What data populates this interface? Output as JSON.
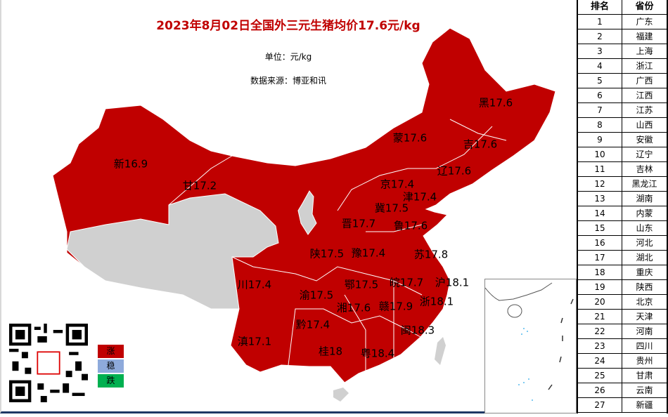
{
  "title": "2023年8月02日全国外三元生猪均价17.6元/kg",
  "unit": "单位：元/kg",
  "source": "数据来源：博亚和讯",
  "colors": {
    "up": "#c00000",
    "flat": "#8eaadb",
    "down": "#00b050",
    "no_data": "#d0d0d0"
  },
  "legend": {
    "up": "涨",
    "flat": "稳",
    "down": "跌"
  },
  "provinces": [
    {
      "abbr": "新",
      "price": "16.9",
      "label": "新16.9"
    },
    {
      "abbr": "甘",
      "price": "17.2",
      "label": "甘17.2"
    },
    {
      "abbr": "蒙",
      "price": "17.6",
      "label": "蒙17.6"
    },
    {
      "abbr": "黑",
      "price": "17.6",
      "label": "黑17.6"
    },
    {
      "abbr": "吉",
      "price": "17.6",
      "label": "吉17.6"
    },
    {
      "abbr": "辽",
      "price": "17.6",
      "label": "辽17.6"
    },
    {
      "abbr": "京",
      "price": "17.4",
      "label": "京17.4"
    },
    {
      "abbr": "津",
      "price": "17.4",
      "label": "津17.4"
    },
    {
      "abbr": "冀",
      "price": "17.5",
      "label": "冀17.5"
    },
    {
      "abbr": "晋",
      "price": "17.7",
      "label": "晋17.7"
    },
    {
      "abbr": "鲁",
      "price": "17.6",
      "label": "鲁17.6"
    },
    {
      "abbr": "陕",
      "price": "17.5",
      "label": "陕17.5"
    },
    {
      "abbr": "豫",
      "price": "17.4",
      "label": "豫17.4"
    },
    {
      "abbr": "苏",
      "price": "17.8",
      "label": "苏17.8"
    },
    {
      "abbr": "川",
      "price": "17.4",
      "label": "川17.4"
    },
    {
      "abbr": "鄂",
      "price": "17.5",
      "label": "鄂17.5"
    },
    {
      "abbr": "皖",
      "price": "17.7",
      "label": "皖17.7"
    },
    {
      "abbr": "沪",
      "price": "18.1",
      "label": "沪18.1"
    },
    {
      "abbr": "渝",
      "price": "17.5",
      "label": "渝17.5"
    },
    {
      "abbr": "湘",
      "price": "17.6",
      "label": "湘17.6"
    },
    {
      "abbr": "赣",
      "price": "17.9",
      "label": "赣17.9"
    },
    {
      "abbr": "浙",
      "price": "18.1",
      "label": "浙18.1"
    },
    {
      "abbr": "黔",
      "price": "17.4",
      "label": "黔17.4"
    },
    {
      "abbr": "闽",
      "price": "18.3",
      "label": "闽18.3"
    },
    {
      "abbr": "滇",
      "price": "17.1",
      "label": "滇17.1"
    },
    {
      "abbr": "桂",
      "price": "18",
      "label": "桂18"
    },
    {
      "abbr": "粤",
      "price": "18.4",
      "label": "粤18.4"
    }
  ],
  "ranking": {
    "headers": [
      "排名",
      "省份"
    ],
    "rows": [
      [
        "1",
        "广东"
      ],
      [
        "2",
        "福建"
      ],
      [
        "3",
        "上海"
      ],
      [
        "4",
        "浙江"
      ],
      [
        "5",
        "广西"
      ],
      [
        "6",
        "江西"
      ],
      [
        "7",
        "江苏"
      ],
      [
        "8",
        "山西"
      ],
      [
        "9",
        "安徽"
      ],
      [
        "10",
        "辽宁"
      ],
      [
        "11",
        "吉林"
      ],
      [
        "12",
        "黑龙江"
      ],
      [
        "13",
        "湖南"
      ],
      [
        "14",
        "内蒙"
      ],
      [
        "15",
        "山东"
      ],
      [
        "16",
        "河北"
      ],
      [
        "17",
        "湖北"
      ],
      [
        "18",
        "重庆"
      ],
      [
        "19",
        "陕西"
      ],
      [
        "20",
        "北京"
      ],
      [
        "21",
        "天津"
      ],
      [
        "22",
        "河南"
      ],
      [
        "23",
        "四川"
      ],
      [
        "24",
        "贵州"
      ],
      [
        "25",
        "甘肃"
      ],
      [
        "26",
        "云南"
      ],
      [
        "27",
        "新疆"
      ]
    ]
  }
}
